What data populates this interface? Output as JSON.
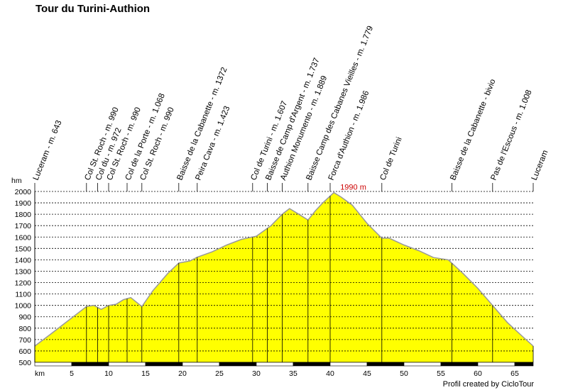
{
  "chart_data": {
    "type": "area",
    "title": "Tour du Turini-Authion",
    "xlabel": "km",
    "ylabel": "hm",
    "xlim": [
      0,
      67.5
    ],
    "ylim": [
      500,
      2000
    ],
    "x_ticks": [
      5,
      10,
      15,
      20,
      25,
      30,
      35,
      40,
      45,
      50,
      55,
      60,
      65
    ],
    "y_ticks": [
      500,
      600,
      700,
      800,
      900,
      1000,
      1100,
      1200,
      1300,
      1400,
      1500,
      1600,
      1700,
      1800,
      1900,
      2000
    ],
    "grid": "horizontal dotted",
    "fill_color": "#ffff00",
    "line_color": "#999999",
    "series": [
      {
        "x": [
          0,
          2,
          4,
          6,
          7,
          8,
          9,
          10,
          11,
          12,
          13,
          14.5,
          16,
          18,
          19.5,
          21,
          22,
          24,
          26,
          28,
          30,
          32,
          33.5,
          34.5,
          36,
          37,
          38,
          39,
          40.5,
          41.5,
          43,
          45,
          47,
          48,
          50,
          52,
          54,
          56,
          58,
          60,
          62,
          64,
          66,
          67.5
        ],
        "y": [
          643,
          740,
          840,
          940,
          990,
          1000,
          965,
          1000,
          1010,
          1050,
          1068,
          990,
          1130,
          1280,
          1372,
          1390,
          1423,
          1470,
          1530,
          1580,
          1607,
          1700,
          1800,
          1850,
          1790,
          1750,
          1830,
          1900,
          1990,
          1950,
          1880,
          1720,
          1590,
          1590,
          1530,
          1480,
          1420,
          1400,
          1280,
          1150,
          1000,
          850,
          730,
          643
        ]
      }
    ],
    "waypoints": [
      {
        "label": "Luceram  - m. 643",
        "x": 0
      },
      {
        "label": "Col St. Roch - m. 990",
        "x": 7
      },
      {
        "label": "Col du  - m. 972",
        "x": 8.5
      },
      {
        "label": "Col St. Roch - m. 990",
        "x": 10
      },
      {
        "label": "Col de la Porte - m. 1.068",
        "x": 12.5
      },
      {
        "label": "Col St. Roch - m. 990",
        "x": 14.5
      },
      {
        "label": "Baisse de la Cabanette - m. 1372",
        "x": 19.5
      },
      {
        "label": "Peira Cava - m. 1.423",
        "x": 22
      },
      {
        "label": "Col de Turini - m. 1.607",
        "x": 29.5
      },
      {
        "label": "Baisse de Camp d'Argent - m. 1.737",
        "x": 31.5
      },
      {
        "label": "Authion Monumento - m. 1.889",
        "x": 33.5
      },
      {
        "label": "Baisse Camp des Cabanes Vieilles - m. 1.779",
        "x": 37
      },
      {
        "label": "Forca d'Authion - m. 1.986",
        "x": 40
      },
      {
        "label": "Col de Turini",
        "x": 47
      },
      {
        "label": "Baisse de la Cabanette - bivio",
        "x": 56.5
      },
      {
        "label": "Pas de l'Escous - m. 1.008",
        "x": 62
      },
      {
        "label": "Luceram",
        "x": 67.5
      }
    ],
    "peak_label": "1990 m",
    "peak": {
      "x": 40.5,
      "y": 1990
    }
  },
  "credit": "Profil created by CicloTour"
}
